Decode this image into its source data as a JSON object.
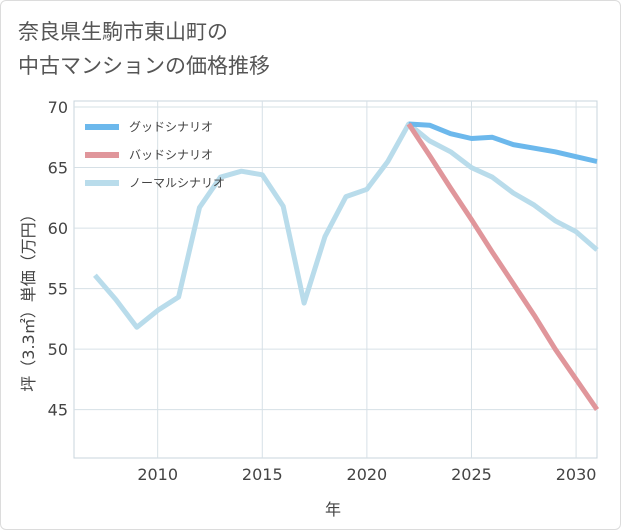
{
  "title": "奈良県生駒市東山町の\n中古マンションの価格推移",
  "chart_data": {
    "type": "line",
    "xlabel": "年",
    "ylabel": "坪（3.3㎡）単価（万円）",
    "xlim": [
      2006,
      2031
    ],
    "ylim": [
      41,
      70.5
    ],
    "x_ticks": [
      2010,
      2015,
      2020,
      2025,
      2030
    ],
    "y_ticks": [
      45,
      50,
      55,
      60,
      65,
      70
    ],
    "grid": true,
    "legend_position": "top-left",
    "series": [
      {
        "name": "グッドシナリオ",
        "color": "#6cb8ec",
        "x": [
          2022,
          2023,
          2024,
          2025,
          2026,
          2027,
          2028,
          2029,
          2030,
          2031
        ],
        "y": [
          68.6,
          68.5,
          67.8,
          67.4,
          67.5,
          66.9,
          66.6,
          66.3,
          65.9,
          65.5
        ]
      },
      {
        "name": "バッドシナリオ",
        "color": "#e0969b",
        "x": [
          2022,
          2023,
          2024,
          2025,
          2026,
          2027,
          2028,
          2029,
          2030,
          2031
        ],
        "y": [
          68.6,
          66.0,
          63.3,
          60.7,
          58.0,
          55.4,
          52.8,
          50.0,
          47.5,
          45.0
        ]
      },
      {
        "name": "ノーマルシナリオ",
        "color": "#b9dceb",
        "x": [
          2007,
          2008,
          2009,
          2010,
          2011,
          2012,
          2013,
          2014,
          2015,
          2016,
          2017,
          2018,
          2019,
          2020,
          2021,
          2022,
          2023,
          2024,
          2025,
          2026,
          2027,
          2028,
          2029,
          2030,
          2031
        ],
        "y": [
          56.1,
          54.1,
          51.8,
          53.2,
          54.3,
          61.7,
          64.2,
          64.7,
          64.4,
          61.8,
          53.8,
          59.3,
          62.6,
          63.2,
          65.5,
          68.6,
          67.2,
          66.3,
          65.0,
          64.2,
          62.9,
          61.9,
          60.6,
          59.7,
          58.2
        ]
      }
    ]
  }
}
